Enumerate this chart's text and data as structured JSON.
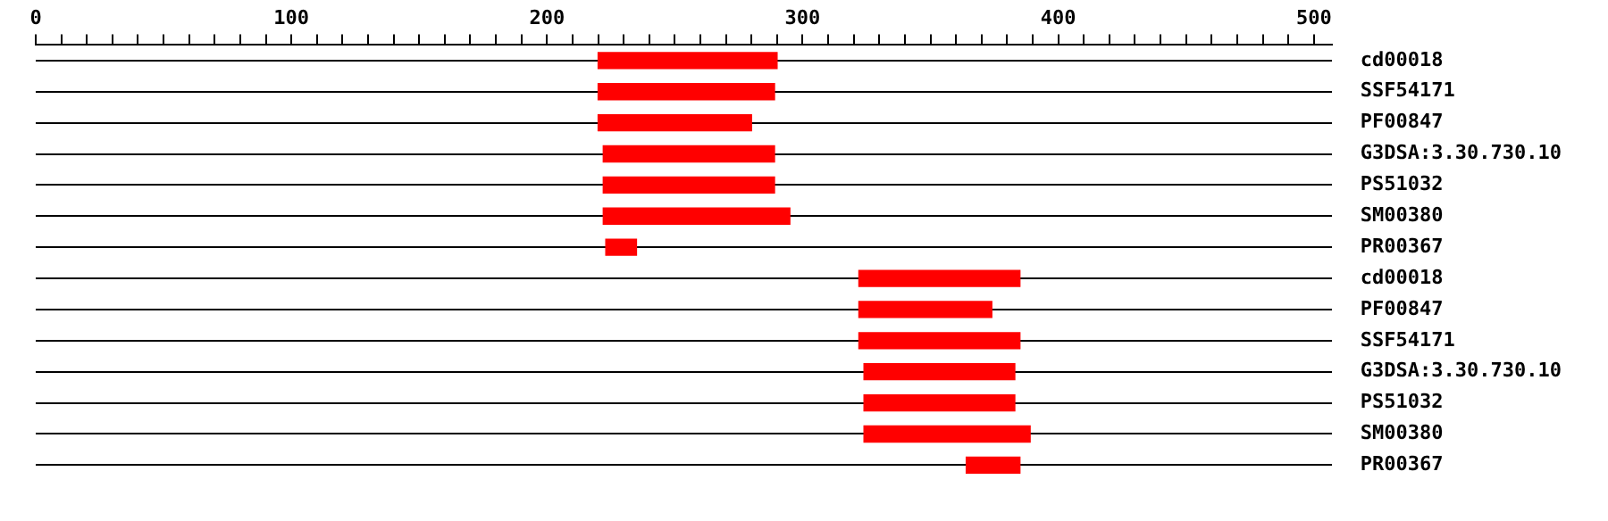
{
  "chart_data": {
    "type": "bar",
    "orientation": "horizontal",
    "grid": "y",
    "color": "#ff0000",
    "categories": [
      "cd00018",
      "SSF54171",
      "PF00847",
      "G3DSA:3.30.730.10",
      "PS51032",
      "SM00380",
      "PR00367",
      "cd00018",
      "PF00847",
      "SSF54171",
      "G3DSA:3.30.730.10",
      "PS51032",
      "SM00380",
      "PR00367"
    ],
    "base": [
      220,
      220,
      220,
      222,
      222,
      222,
      223,
      322,
      322,
      322,
      324,
      324,
      324,
      364
    ],
    "values": [
      70,
      69,
      60,
      67,
      67,
      73,
      12,
      63,
      52,
      63,
      59,
      59,
      65,
      21
    ],
    "xlim": [
      0,
      507
    ],
    "xticks": [
      0,
      {
        "value": 10,
        "label": null
      },
      {
        "value": 20,
        "label": null
      },
      {
        "value": 30,
        "label": null
      },
      {
        "value": 40,
        "label": null
      },
      {
        "value": 50,
        "label": null
      },
      {
        "value": 60,
        "label": null
      },
      {
        "value": 70,
        "label": null
      },
      {
        "value": 80,
        "label": null
      },
      {
        "value": 90,
        "label": null
      },
      100,
      {
        "value": 110,
        "label": null
      },
      {
        "value": 120,
        "label": null
      },
      {
        "value": 130,
        "label": null
      },
      {
        "value": 140,
        "label": null
      },
      {
        "value": 150,
        "label": null
      },
      {
        "value": 160,
        "label": null
      },
      {
        "value": 170,
        "label": null
      },
      {
        "value": 180,
        "label": null
      },
      {
        "value": 190,
        "label": null
      },
      200,
      {
        "value": 210,
        "label": null
      },
      {
        "value": 220,
        "label": null
      },
      {
        "value": 230,
        "label": null
      },
      {
        "value": 240,
        "label": null
      },
      {
        "value": 250,
        "label": null
      },
      {
        "value": 260,
        "label": null
      },
      {
        "value": 270,
        "label": null
      },
      {
        "value": 280,
        "label": null
      },
      {
        "value": 290,
        "label": null
      },
      300,
      {
        "value": 310,
        "label": null
      },
      {
        "value": 320,
        "label": null
      },
      {
        "value": 330,
        "label": null
      },
      {
        "value": 340,
        "label": null
      },
      {
        "value": 350,
        "label": null
      },
      {
        "value": 360,
        "label": null
      },
      {
        "value": 370,
        "label": null
      },
      {
        "value": 380,
        "label": null
      },
      {
        "value": 390,
        "label": null
      },
      400,
      {
        "value": 410,
        "label": null
      },
      {
        "value": 420,
        "label": null
      },
      {
        "value": 430,
        "label": null
      },
      {
        "value": 440,
        "label": null
      },
      {
        "value": 450,
        "label": null
      },
      {
        "value": 460,
        "label": null
      },
      {
        "value": 470,
        "label": null
      },
      {
        "value": 480,
        "label": null
      },
      {
        "value": 490,
        "label": null
      },
      500
    ]
  }
}
